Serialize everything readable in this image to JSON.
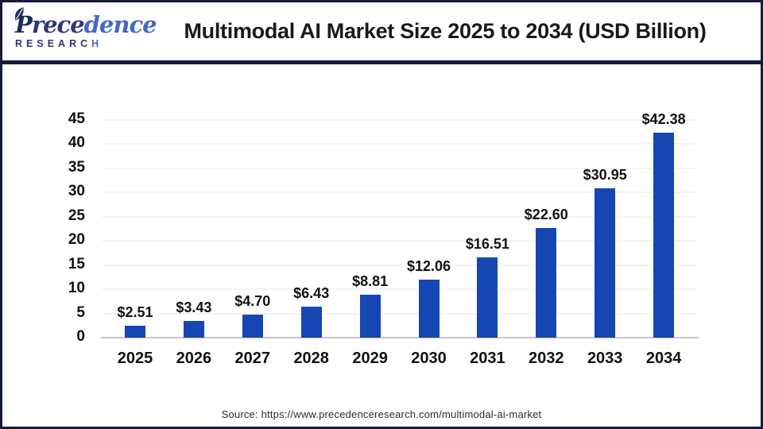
{
  "header": {
    "brand": {
      "p1": "P",
      "p2": "rece",
      "p3": "dence",
      "line2_main": "RESEARC",
      "line2_accent": "H"
    },
    "title": "Multimodal AI Market Size 2025 to 2034 (USD Billion)"
  },
  "chart_data": {
    "type": "bar",
    "title": "Multimodal AI Market Size 2025 to 2034 (USD Billion)",
    "categories": [
      "2025",
      "2026",
      "2027",
      "2028",
      "2029",
      "2030",
      "2031",
      "2032",
      "2033",
      "2034"
    ],
    "values": [
      2.51,
      3.43,
      4.7,
      6.43,
      8.81,
      12.06,
      16.51,
      22.6,
      30.95,
      42.38
    ],
    "bar_labels": [
      "$2.51",
      "$3.43",
      "$4.70",
      "$6.43",
      "$8.81",
      "$12.06",
      "$16.51",
      "$22.60",
      "$30.95",
      "$42.38"
    ],
    "yticks": [
      0,
      5,
      10,
      15,
      20,
      25,
      30,
      35,
      40,
      45
    ],
    "ylim": [
      0,
      45
    ],
    "xlabel": "",
    "ylabel": "",
    "units": "USD Billion",
    "grid": "faint-horizontal",
    "legend": "none",
    "bar_color": "#1546b4",
    "label_color": "#111111",
    "axis_line_color": "#c6c6c6",
    "gridline_color": "#f3f3f3"
  },
  "footer": {
    "source": "Source: https://www.precedenceresearch.com/multimodal-ai-market"
  }
}
